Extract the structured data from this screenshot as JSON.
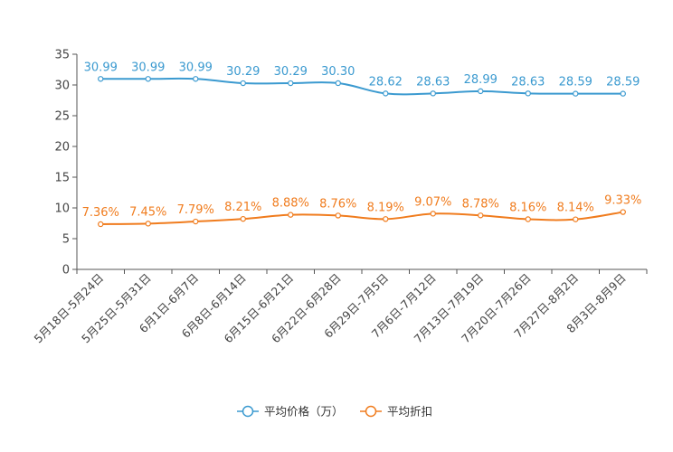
{
  "chart_data": {
    "type": "line",
    "title": "",
    "xlabel": "",
    "ylabel": "",
    "ylim": [
      0,
      35
    ],
    "yticks": [
      0,
      5,
      10,
      15,
      20,
      25,
      30,
      35
    ],
    "categories": [
      "5月18日-5月24日",
      "5月25日-5月31日",
      "6月1日-6月7日",
      "6月8日-6月14日",
      "6月15日-6月21日",
      "6月22日-6月28日",
      "6月29日-7月5日",
      "7月6日-7月12日",
      "7月13日-7月19日",
      "7月20日-7月26日",
      "7月27日-8月2日",
      "8月3日-8月9日"
    ],
    "series": [
      {
        "name": "平均价格（万）",
        "color": "#3b9ad0",
        "values": [
          30.99,
          30.99,
          30.99,
          30.29,
          30.29,
          30.3,
          28.62,
          28.63,
          28.99,
          28.63,
          28.59,
          28.59
        ],
        "labels": [
          "30.99",
          "30.99",
          "30.99",
          "30.29",
          "30.29",
          "30.30",
          "28.62",
          "28.63",
          "28.99",
          "28.63",
          "28.59",
          "28.59"
        ]
      },
      {
        "name": "平均折扣",
        "color": "#f07c1e",
        "values": [
          7.36,
          7.45,
          7.79,
          8.21,
          8.88,
          8.76,
          8.19,
          9.07,
          8.78,
          8.16,
          8.14,
          9.33
        ],
        "labels": [
          "7.36%",
          "7.45%",
          "7.79%",
          "8.21%",
          "8.88%",
          "8.76%",
          "8.19%",
          "9.07%",
          "8.78%",
          "8.16%",
          "8.14%",
          "9.33%"
        ]
      }
    ],
    "grid": false,
    "legend": "bottom-center"
  }
}
